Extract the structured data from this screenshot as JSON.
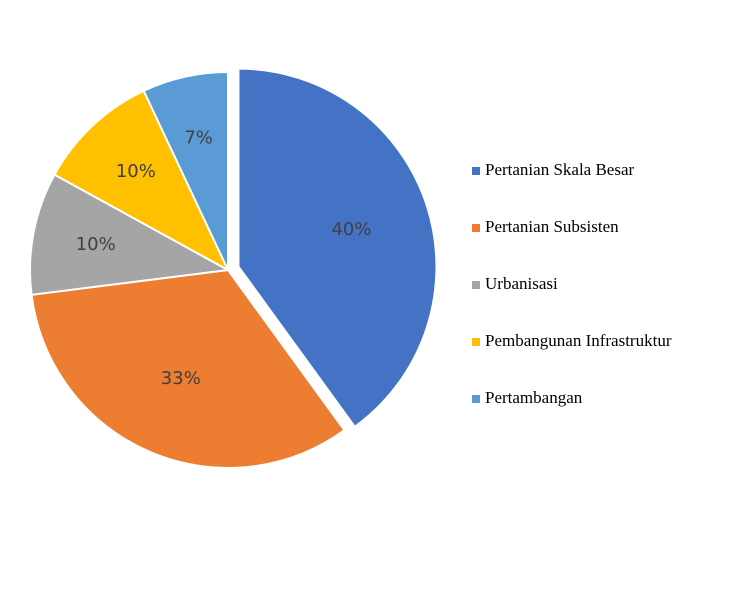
{
  "chart_data": {
    "type": "pie",
    "categories": [
      "Pertanian Skala Besar",
      "Pertanian Subsisten",
      "Urbanisasi",
      "Pembangunan Infrastruktur",
      "Pertambangan"
    ],
    "values": [
      40,
      33,
      10,
      10,
      7
    ],
    "value_labels": [
      "40%",
      "33%",
      "10%",
      "10%",
      "7%"
    ],
    "colors": [
      "#4472c4",
      "#ed7d31",
      "#a5a5a5",
      "#ffc000",
      "#5b9bd5"
    ],
    "exploded": [
      true,
      false,
      false,
      false,
      false
    ],
    "legend": "right"
  }
}
